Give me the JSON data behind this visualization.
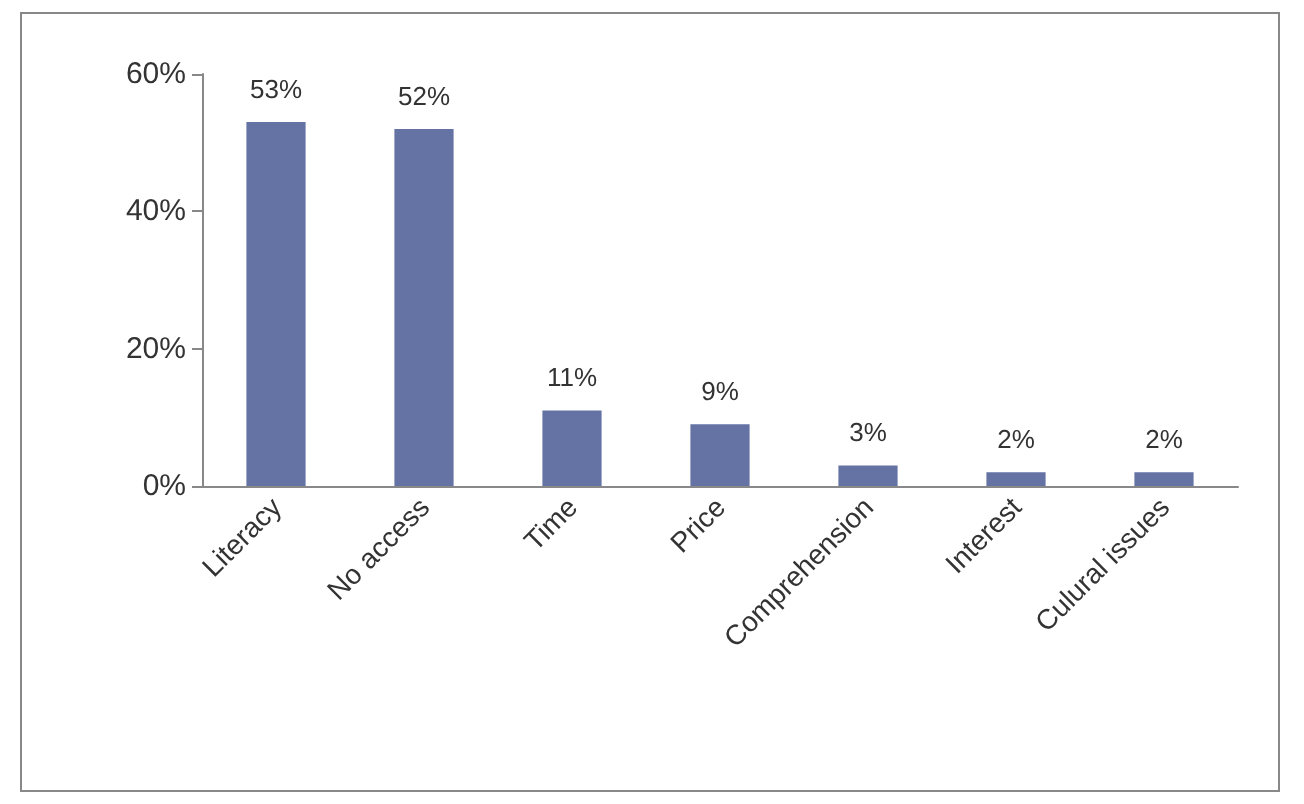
{
  "chart_data": {
    "type": "bar",
    "categories": [
      "Literacy",
      "No access",
      "Time",
      "Price",
      "Comprehension",
      "Interest",
      "Culural issues"
    ],
    "values": [
      53,
      52,
      11,
      9,
      3,
      2,
      2
    ],
    "value_labels": [
      "53%",
      "52%",
      "11%",
      "9%",
      "3%",
      "2%",
      "2%"
    ],
    "color": "#6472a4",
    "ylim": [
      0,
      60
    ],
    "yticks": [
      {
        "value": 0,
        "label": "0%"
      },
      {
        "value": 20,
        "label": "20%"
      },
      {
        "value": 40,
        "label": "40%"
      },
      {
        "value": 60,
        "label": "60%"
      }
    ],
    "grid": false
  }
}
